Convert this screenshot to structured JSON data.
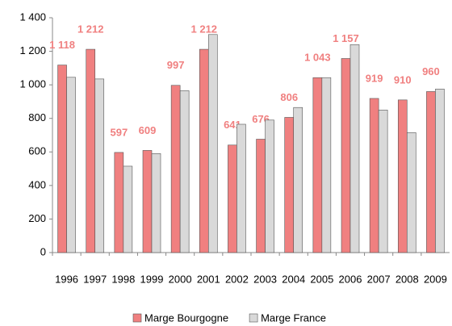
{
  "chart_data": {
    "type": "bar",
    "categories": [
      "1996",
      "1997",
      "1998",
      "1999",
      "2000",
      "2001",
      "2002",
      "2003",
      "2004",
      "2005",
      "2006",
      "2007",
      "2008",
      "2009"
    ],
    "series": [
      {
        "name": "Marge Bourgogne",
        "color": "#f08080",
        "values": [
          1118,
          1212,
          597,
          609,
          997,
          1212,
          641,
          676,
          806,
          1043,
          1157,
          919,
          910,
          960
        ],
        "value_labels": [
          "1 118",
          "1 212",
          "597",
          "609",
          "997",
          "1 212",
          "641",
          "676",
          "806",
          "1 043",
          "1 157",
          "919",
          "910",
          "960"
        ]
      },
      {
        "name": "Marge France",
        "color": "#d9d9d9",
        "values": [
          1045,
          1035,
          515,
          590,
          965,
          1300,
          765,
          790,
          865,
          1043,
          1240,
          850,
          715,
          975
        ]
      }
    ],
    "ylim": [
      0,
      1400
    ],
    "yticks": [
      0,
      200,
      400,
      600,
      800,
      {
        "value": 1000,
        "label": "1 000"
      },
      {
        "value": 1200,
        "label": "1 200"
      },
      {
        "value": 1400,
        "label": "1 400"
      }
    ],
    "legend": "bottom"
  }
}
